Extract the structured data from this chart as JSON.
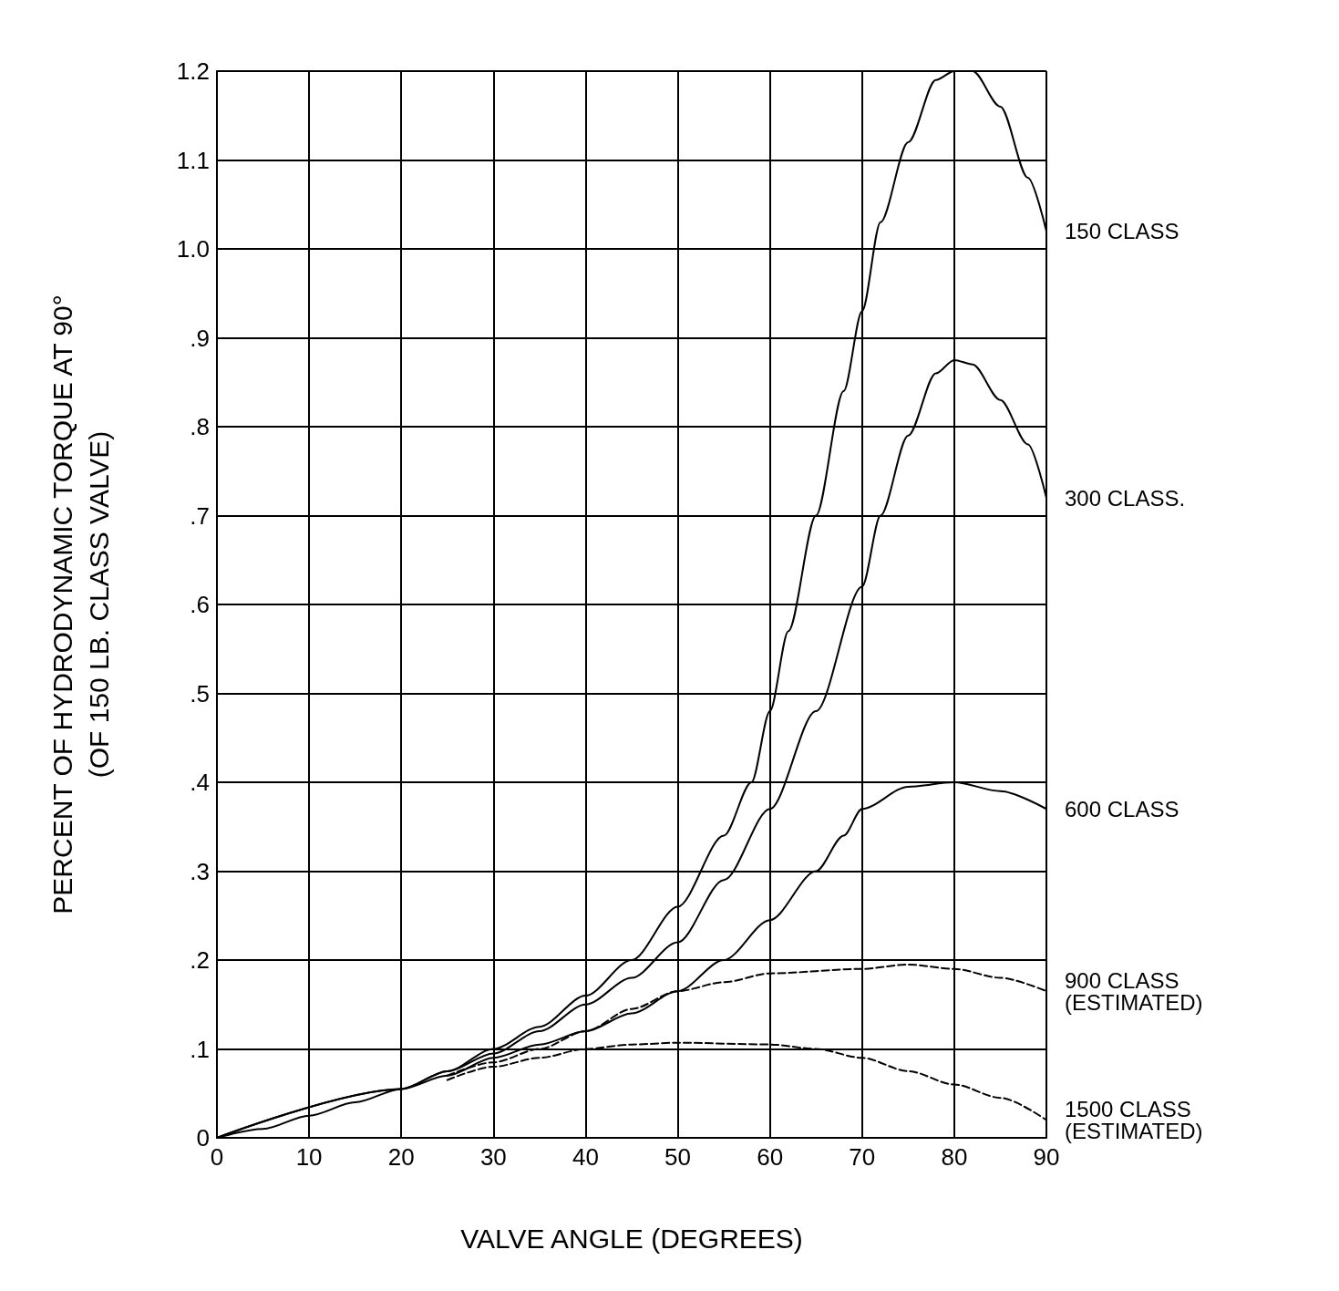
{
  "chart_data": {
    "type": "line",
    "xlabel": "VALVE ANGLE (DEGREES)",
    "ylabel": "PERCENT OF HYDRODYNAMIC TORQUE AT 90°\n(OF 150 LB. CLASS VALVE)",
    "xlim": [
      0,
      90
    ],
    "xticks": [
      0,
      10,
      20,
      30,
      40,
      50,
      60,
      70,
      80,
      90
    ],
    "ylim": [
      0,
      1.2
    ],
    "yticks": [
      0,
      {
        "value": 0.1,
        "label": ".1"
      },
      {
        "value": 0.2,
        "label": ".2"
      },
      {
        "value": 0.3,
        "label": ".3"
      },
      {
        "value": 0.4,
        "label": ".4"
      },
      {
        "value": 0.5,
        "label": ".5"
      },
      {
        "value": 0.6,
        "label": ".6"
      },
      {
        "value": 0.7,
        "label": ".7"
      },
      {
        "value": 0.8,
        "label": ".8"
      },
      {
        "value": 0.9,
        "label": ".9"
      },
      {
        "value": 1.0,
        "label": "1.0"
      },
      {
        "value": 1.1,
        "label": "1.1"
      },
      {
        "value": 1.2,
        "label": "1.2"
      }
    ],
    "grid": true,
    "marker": "none",
    "series": [
      {
        "name": "150 CLASS",
        "color": "#000000",
        "line_style": "solid",
        "x": [
          0,
          5,
          10,
          15,
          20,
          25,
          30,
          35,
          40,
          45,
          50,
          55,
          58,
          60,
          62,
          65,
          68,
          70,
          72,
          75,
          78,
          80,
          82,
          85,
          88,
          90
        ],
        "values": [
          0,
          0.01,
          0.025,
          0.04,
          0.055,
          0.075,
          0.1,
          0.125,
          0.16,
          0.2,
          0.26,
          0.34,
          0.4,
          0.48,
          0.57,
          0.7,
          0.84,
          0.93,
          1.03,
          1.12,
          1.19,
          1.2,
          1.2,
          1.16,
          1.08,
          1.02
        ]
      },
      {
        "name": "300 CLASS.",
        "color": "#000000",
        "line_style": "solid",
        "x": [
          0,
          20,
          25,
          30,
          35,
          40,
          45,
          50,
          55,
          60,
          65,
          70,
          72,
          75,
          78,
          80,
          82,
          85,
          88,
          90
        ],
        "values": [
          0,
          0.055,
          0.075,
          0.095,
          0.12,
          0.15,
          0.18,
          0.22,
          0.29,
          0.37,
          0.48,
          0.62,
          0.7,
          0.79,
          0.86,
          0.875,
          0.87,
          0.83,
          0.78,
          0.72
        ]
      },
      {
        "name": "600 CLASS",
        "color": "#000000",
        "line_style": "solid",
        "x": [
          0,
          20,
          25,
          30,
          35,
          40,
          45,
          50,
          55,
          60,
          65,
          68,
          70,
          75,
          80,
          85,
          90
        ],
        "values": [
          0,
          0.055,
          0.07,
          0.09,
          0.105,
          0.12,
          0.14,
          0.165,
          0.2,
          0.245,
          0.3,
          0.34,
          0.37,
          0.395,
          0.4,
          0.39,
          0.37
        ]
      },
      {
        "name": "900 CLASS (ESTIMATED)",
        "color": "#000000",
        "line_style": "dashed",
        "x": [
          25,
          30,
          35,
          40,
          45,
          50,
          55,
          60,
          70,
          75,
          80,
          85,
          90
        ],
        "values": [
          0.07,
          0.085,
          0.1,
          0.12,
          0.145,
          0.165,
          0.175,
          0.185,
          0.19,
          0.195,
          0.19,
          0.18,
          0.165
        ]
      },
      {
        "name": "1500 CLASS (ESTIMATED)",
        "color": "#000000",
        "line_style": "dashed",
        "x": [
          25,
          30,
          35,
          40,
          45,
          50,
          60,
          65,
          70,
          75,
          80,
          85,
          90
        ],
        "values": [
          0.065,
          0.08,
          0.09,
          0.1,
          0.105,
          0.107,
          0.105,
          0.1,
          0.09,
          0.075,
          0.06,
          0.045,
          0.02
        ]
      }
    ]
  }
}
